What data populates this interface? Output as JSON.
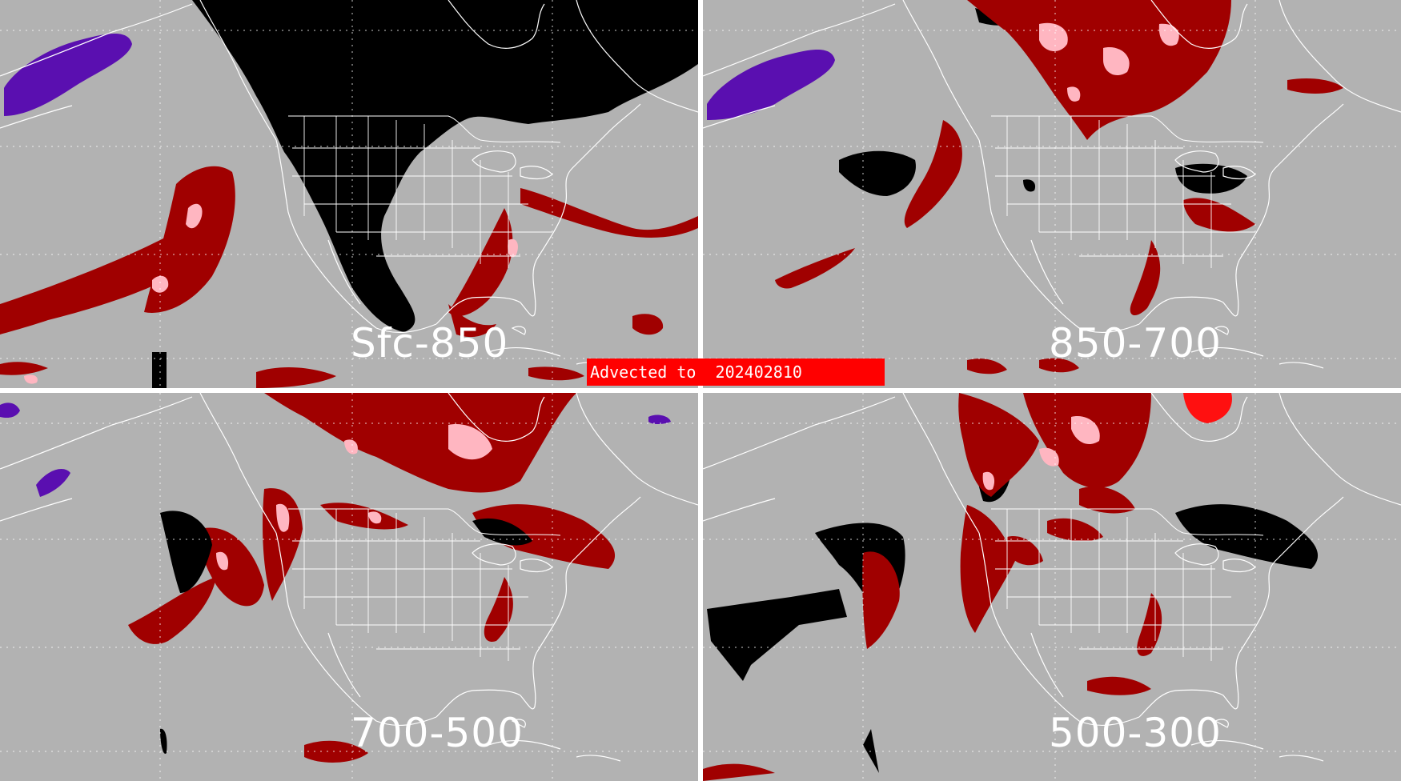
{
  "banner": {
    "text": "Advected to  202402810"
  },
  "colors": {
    "background": "#b2b2b2",
    "dark_red": "#a00000",
    "pink": "#ffb6c1",
    "bright_red": "#ff1010",
    "black": "#000000",
    "purple": "#5a0fb0",
    "map_lines": "#ffffff"
  },
  "panels": [
    {
      "id": "tl",
      "label": "Sfc-850"
    },
    {
      "id": "tr",
      "label": "850-700"
    },
    {
      "id": "bl",
      "label": "700-500"
    },
    {
      "id": "br",
      "label": "500-300"
    }
  ]
}
